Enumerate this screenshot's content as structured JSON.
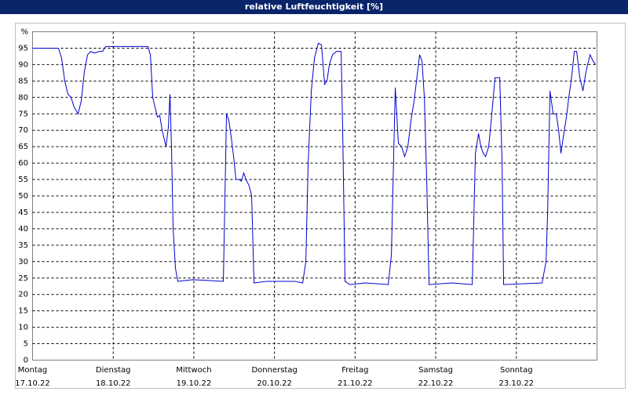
{
  "chart_data": {
    "type": "line",
    "title": "relative Luftfeuchtigkeit [%]",
    "xlim": [
      0,
      7
    ],
    "xticks": [
      {
        "value": 0,
        "label": "Montag"
      },
      {
        "value": 1,
        "label": "Dienstag"
      },
      {
        "value": 2,
        "label": "Mittwoch"
      },
      {
        "value": 3,
        "label": "Donnerstag"
      },
      {
        "value": 4,
        "label": "Freitag"
      },
      {
        "value": 5,
        "label": "Samstag"
      },
      {
        "value": 6,
        "label": "Sonntag"
      }
    ],
    "xtick_dates": [
      "17.10.22",
      "18.10.22",
      "19.10.22",
      "20.10.22",
      "21.10.22",
      "22.10.22",
      "23.10.22"
    ],
    "ylim": [
      0,
      100
    ],
    "yticks": [
      0,
      5,
      10,
      15,
      20,
      25,
      30,
      35,
      40,
      45,
      50,
      55,
      60,
      65,
      70,
      75,
      80,
      85,
      90,
      95,
      {
        "value": 100,
        "label": "%"
      }
    ],
    "grid": true,
    "x": [
      0,
      0.321,
      0.36,
      0.399,
      0.438,
      0.477,
      0.516,
      0.565,
      0.604,
      0.643,
      0.682,
      0.721,
      0.769,
      0.828,
      0.867,
      0.906,
      0.964,
      1.431,
      1.461,
      1.49,
      1.519,
      1.548,
      1.577,
      1.607,
      1.636,
      1.655,
      1.684,
      1.704,
      1.723,
      1.743,
      1.772,
      1.801,
      1.986,
      2.366,
      2.405,
      2.434,
      2.463,
      2.493,
      2.522,
      2.561,
      2.59,
      2.619,
      2.648,
      2.687,
      2.717,
      2.746,
      2.911,
      3.057,
      3.252,
      3.35,
      3.389,
      3.418,
      3.457,
      3.496,
      3.544,
      3.583,
      3.622,
      3.651,
      3.681,
      3.72,
      3.768,
      3.827,
      3.846,
      3.875,
      3.934,
      4.128,
      4.411,
      4.45,
      4.498,
      4.537,
      4.576,
      4.615,
      4.654,
      4.693,
      4.732,
      4.771,
      4.8,
      4.83,
      4.859,
      4.888,
      4.917,
      5.2,
      5.453,
      5.492,
      5.531,
      5.56,
      5.589,
      5.618,
      5.657,
      5.696,
      5.735,
      5.794,
      5.823,
      5.842,
      6.319,
      6.368,
      6.388,
      6.417,
      6.456,
      6.495,
      6.524,
      6.553,
      6.582,
      6.621,
      6.65,
      6.68,
      6.719,
      6.748,
      6.787,
      6.826,
      6.865,
      6.914,
      6.953,
      6.982
    ],
    "series": [
      {
        "color": "#0000cc",
        "values": [
          95,
          95,
          92,
          85,
          81,
          80,
          77,
          75,
          79,
          88,
          93,
          94,
          93.5,
          94,
          94,
          95.5,
          95.5,
          95.5,
          93,
          80,
          77,
          74,
          74.5,
          70,
          67,
          65,
          71,
          81,
          65,
          40,
          28,
          24,
          24.5,
          24,
          75,
          73,
          68,
          62,
          55,
          55,
          54.5,
          57,
          55,
          53,
          50,
          23.5,
          24,
          24,
          24,
          23.5,
          30,
          60,
          82,
          92,
          96.5,
          96,
          84,
          85,
          90,
          93,
          94,
          94,
          70,
          24,
          23,
          23.5,
          23,
          32,
          83,
          66,
          65,
          62,
          65,
          73,
          79,
          87,
          93,
          91,
          80,
          55,
          23,
          23.5,
          23,
          63,
          69,
          65,
          63,
          62,
          65,
          75,
          86,
          86,
          60,
          23,
          23.5,
          30,
          45,
          82,
          75,
          75,
          70,
          63,
          68,
          74,
          80,
          85,
          94,
          94,
          86,
          82,
          88,
          93,
          91,
          90
        ]
      }
    ]
  }
}
